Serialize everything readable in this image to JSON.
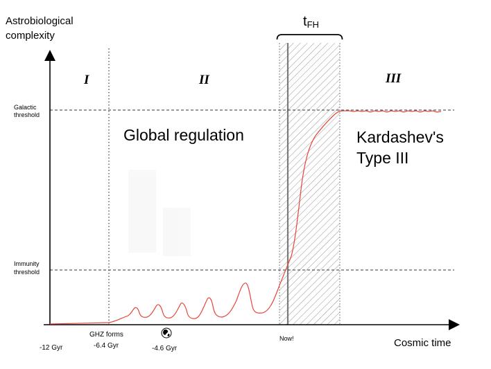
{
  "axes": {
    "y_label_line1": "Astrobiological",
    "y_label_line2": "complexity",
    "x_label": "Cosmic time"
  },
  "thresholds": {
    "galactic_line1": "Galactic",
    "galactic_line2": "threshold",
    "immunity_line1": "Immunity",
    "immunity_line2": "threshold"
  },
  "phases": {
    "phase1": "I",
    "phase2": "II",
    "phase3": "III"
  },
  "annotations": {
    "global_regulation": "Global regulation",
    "kardashev_line1": "Kardashev's",
    "kardashev_line2": "Type III",
    "tfh_main": "t",
    "tfh_sub": "FH"
  },
  "time_ticks": {
    "start": "-12 Gyr",
    "ghz_line1": "GHZ forms",
    "ghz_line2": "-6.4 Gyr",
    "earth": "-4.6 Gyr",
    "now": "Now!"
  },
  "colors": {
    "curve": "#e8443a",
    "axis": "#000000",
    "now_line": "#777777",
    "hatch": "#999999"
  },
  "icons": {
    "earth": "earth-globe-icon"
  }
}
